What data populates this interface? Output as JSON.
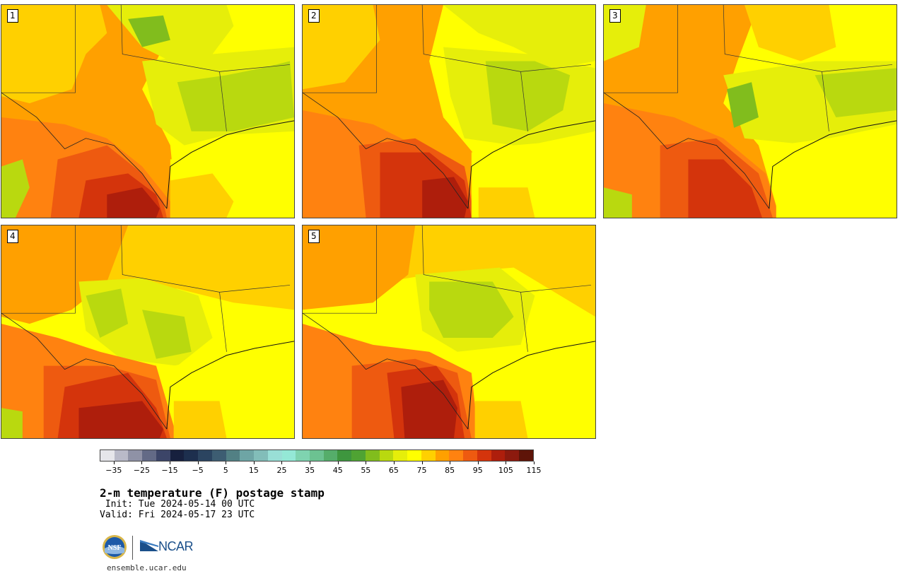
{
  "panels": [
    {
      "label": "1"
    },
    {
      "label": "2"
    },
    {
      "label": "3"
    },
    {
      "label": "4"
    },
    {
      "label": "5"
    }
  ],
  "colorbar": {
    "colors": [
      "#e6e6ea",
      "#b9bac8",
      "#8f92a6",
      "#636a86",
      "#3c4568",
      "#17203e",
      "#1d2f4e",
      "#2b4460",
      "#3d5d72",
      "#528084",
      "#6ea5a5",
      "#82bdb9",
      "#99dfd6",
      "#94e8d6",
      "#7fd3b0",
      "#6cc291",
      "#55ad6a",
      "#3e963e",
      "#4fa333",
      "#81bd1d",
      "#b9d90f",
      "#e6ee0a",
      "#ffff00",
      "#ffd000",
      "#ffa000",
      "#ff8210",
      "#ee5a10",
      "#d4340c",
      "#ae1e0c",
      "#8c1a0e",
      "#5e1408"
    ],
    "tick_labels": [
      "−35",
      "−25",
      "−15",
      "−5",
      "5",
      "15",
      "25",
      "35",
      "45",
      "55",
      "65",
      "75",
      "85",
      "95",
      "105",
      "115"
    ]
  },
  "title": "2-m temperature (F) postage stamp",
  "init": " Init: Tue 2024-05-14 00 UTC",
  "valid": "Valid: Fri 2024-05-17 23 UTC",
  "logos": {
    "nsf": "NSF",
    "ncar": "NCAR"
  },
  "site": "ensemble.ucar.edu"
}
